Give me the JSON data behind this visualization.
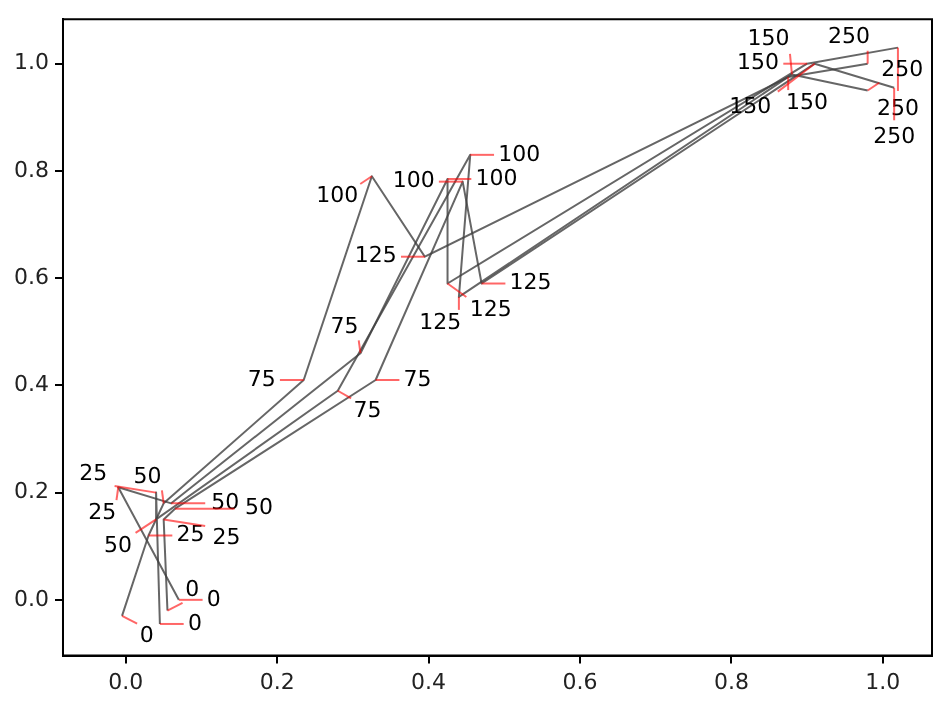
{
  "chart_data": {
    "type": "line",
    "xlim": [
      -0.083,
      1.065
    ],
    "ylim": [
      -0.104,
      1.083
    ],
    "xticks": [
      {
        "value": 0,
        "label": "0.0"
      },
      {
        "value": 0.2,
        "label": "0.2"
      },
      {
        "value": 0.4,
        "label": "0.4"
      },
      {
        "value": 0.6,
        "label": "0.6"
      },
      {
        "value": 0.8,
        "label": "0.8"
      },
      {
        "value": 1,
        "label": "1.0"
      }
    ],
    "yticks": [
      {
        "value": 0,
        "label": "0.0"
      },
      {
        "value": 0.2,
        "label": "0.2"
      },
      {
        "value": 0.4,
        "label": "0.4"
      },
      {
        "value": 0.6,
        "label": "0.6"
      },
      {
        "value": 0.8,
        "label": "0.8"
      },
      {
        "value": 1,
        "label": "1.0"
      }
    ],
    "grid": false,
    "legend": false,
    "marker": "none",
    "series": [
      {
        "color": "#404040",
        "x": [
          -0.005,
          0.03,
          0.05,
          0.235,
          0.325,
          0.395,
          0.875,
          0.98
        ],
        "values": [
          -0.03,
          0.12,
          0.18,
          0.41,
          0.79,
          0.64,
          0.975,
          1.0
        ]
      },
      {
        "color": "#404040",
        "x": [
          0.07,
          -0.01,
          0.06,
          0.31,
          0.425,
          0.425,
          0.9,
          1.02
        ],
        "values": [
          0.0,
          0.21,
          0.18,
          0.46,
          0.785,
          0.59,
          1.0,
          1.03
        ]
      },
      {
        "color": "#404040",
        "x": [
          0.045,
          0.04,
          0.04,
          0.28,
          0.455,
          0.44,
          0.88,
          0.98
        ],
        "values": [
          -0.045,
          0.2,
          0.15,
          0.39,
          0.83,
          0.565,
          0.98,
          0.95
        ]
      },
      {
        "color": "#404040",
        "x": [
          0.055,
          0.05,
          0.065,
          0.33,
          0.445,
          0.47,
          0.91,
          1.015
        ],
        "values": [
          -0.02,
          0.15,
          0.17,
          0.41,
          0.78,
          0.59,
          1.0,
          0.955
        ]
      }
    ],
    "annotations": [
      {
        "text": "0",
        "x": -0.005,
        "y": -0.03
      },
      {
        "text": "25",
        "x": 0.03,
        "y": 0.12
      },
      {
        "text": "50",
        "x": 0.05,
        "y": 0.18
      },
      {
        "text": "75",
        "x": 0.235,
        "y": 0.41
      },
      {
        "text": "100",
        "x": 0.325,
        "y": 0.79
      },
      {
        "text": "125",
        "x": 0.395,
        "y": 0.64
      },
      {
        "text": "150",
        "x": 0.875,
        "y": 0.975
      },
      {
        "text": "250",
        "x": 0.98,
        "y": 1.0
      },
      {
        "text": "0",
        "x": 0.07,
        "y": 0.0
      },
      {
        "text": "25",
        "x": -0.01,
        "y": 0.21
      },
      {
        "text": "50",
        "x": 0.06,
        "y": 0.18
      },
      {
        "text": "75",
        "x": 0.31,
        "y": 0.46
      },
      {
        "text": "100",
        "x": 0.425,
        "y": 0.785
      },
      {
        "text": "125",
        "x": 0.425,
        "y": 0.59
      },
      {
        "text": "150",
        "x": 0.9,
        "y": 1.0
      },
      {
        "text": "250",
        "x": 1.02,
        "y": 1.03
      },
      {
        "text": "0",
        "x": 0.045,
        "y": -0.045
      },
      {
        "text": "25",
        "x": 0.04,
        "y": 0.2
      },
      {
        "text": "50",
        "x": 0.04,
        "y": 0.15
      },
      {
        "text": "75",
        "x": 0.28,
        "y": 0.39
      },
      {
        "text": "100",
        "x": 0.455,
        "y": 0.83
      },
      {
        "text": "125",
        "x": 0.44,
        "y": 0.565
      },
      {
        "text": "150",
        "x": 0.88,
        "y": 0.98
      },
      {
        "text": "250",
        "x": 0.98,
        "y": 0.95
      },
      {
        "text": "0",
        "x": 0.055,
        "y": -0.02
      },
      {
        "text": "25",
        "x": 0.05,
        "y": 0.15
      },
      {
        "text": "50",
        "x": 0.065,
        "y": 0.17
      },
      {
        "text": "75",
        "x": 0.33,
        "y": 0.41
      },
      {
        "text": "100",
        "x": 0.445,
        "y": 0.78
      },
      {
        "text": "125",
        "x": 0.47,
        "y": 0.59
      },
      {
        "text": "150",
        "x": 0.91,
        "y": 1.0
      },
      {
        "text": "250",
        "x": 1.015,
        "y": 0.955
      }
    ]
  }
}
